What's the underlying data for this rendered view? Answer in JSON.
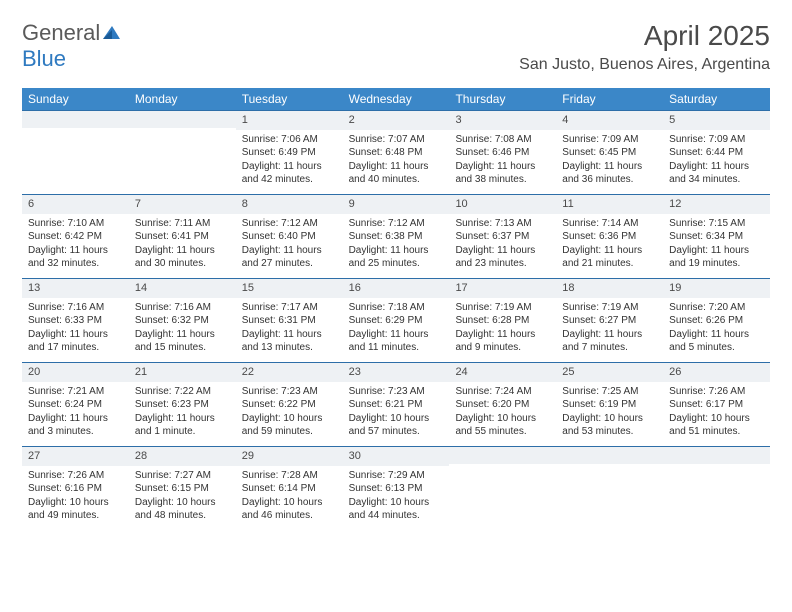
{
  "logo": {
    "part1": "General",
    "part2": "Blue"
  },
  "title": "April 2025",
  "location": "San Justo, Buenos Aires, Argentina",
  "colors": {
    "header_bar": "#3b87c8",
    "day_bar_bg": "#eef1f4",
    "day_bar_border": "#2d6ea8",
    "text": "#3a3a3a",
    "logo_gray": "#5a5a5a",
    "logo_blue": "#2f7ac0"
  },
  "weekdays": [
    "Sunday",
    "Monday",
    "Tuesday",
    "Wednesday",
    "Thursday",
    "Friday",
    "Saturday"
  ],
  "weeks": [
    [
      {
        "n": "",
        "lines": []
      },
      {
        "n": "",
        "lines": []
      },
      {
        "n": "1",
        "lines": [
          "Sunrise: 7:06 AM",
          "Sunset: 6:49 PM",
          "Daylight: 11 hours",
          "and 42 minutes."
        ]
      },
      {
        "n": "2",
        "lines": [
          "Sunrise: 7:07 AM",
          "Sunset: 6:48 PM",
          "Daylight: 11 hours",
          "and 40 minutes."
        ]
      },
      {
        "n": "3",
        "lines": [
          "Sunrise: 7:08 AM",
          "Sunset: 6:46 PM",
          "Daylight: 11 hours",
          "and 38 minutes."
        ]
      },
      {
        "n": "4",
        "lines": [
          "Sunrise: 7:09 AM",
          "Sunset: 6:45 PM",
          "Daylight: 11 hours",
          "and 36 minutes."
        ]
      },
      {
        "n": "5",
        "lines": [
          "Sunrise: 7:09 AM",
          "Sunset: 6:44 PM",
          "Daylight: 11 hours",
          "and 34 minutes."
        ]
      }
    ],
    [
      {
        "n": "6",
        "lines": [
          "Sunrise: 7:10 AM",
          "Sunset: 6:42 PM",
          "Daylight: 11 hours",
          "and 32 minutes."
        ]
      },
      {
        "n": "7",
        "lines": [
          "Sunrise: 7:11 AM",
          "Sunset: 6:41 PM",
          "Daylight: 11 hours",
          "and 30 minutes."
        ]
      },
      {
        "n": "8",
        "lines": [
          "Sunrise: 7:12 AM",
          "Sunset: 6:40 PM",
          "Daylight: 11 hours",
          "and 27 minutes."
        ]
      },
      {
        "n": "9",
        "lines": [
          "Sunrise: 7:12 AM",
          "Sunset: 6:38 PM",
          "Daylight: 11 hours",
          "and 25 minutes."
        ]
      },
      {
        "n": "10",
        "lines": [
          "Sunrise: 7:13 AM",
          "Sunset: 6:37 PM",
          "Daylight: 11 hours",
          "and 23 minutes."
        ]
      },
      {
        "n": "11",
        "lines": [
          "Sunrise: 7:14 AM",
          "Sunset: 6:36 PM",
          "Daylight: 11 hours",
          "and 21 minutes."
        ]
      },
      {
        "n": "12",
        "lines": [
          "Sunrise: 7:15 AM",
          "Sunset: 6:34 PM",
          "Daylight: 11 hours",
          "and 19 minutes."
        ]
      }
    ],
    [
      {
        "n": "13",
        "lines": [
          "Sunrise: 7:16 AM",
          "Sunset: 6:33 PM",
          "Daylight: 11 hours",
          "and 17 minutes."
        ]
      },
      {
        "n": "14",
        "lines": [
          "Sunrise: 7:16 AM",
          "Sunset: 6:32 PM",
          "Daylight: 11 hours",
          "and 15 minutes."
        ]
      },
      {
        "n": "15",
        "lines": [
          "Sunrise: 7:17 AM",
          "Sunset: 6:31 PM",
          "Daylight: 11 hours",
          "and 13 minutes."
        ]
      },
      {
        "n": "16",
        "lines": [
          "Sunrise: 7:18 AM",
          "Sunset: 6:29 PM",
          "Daylight: 11 hours",
          "and 11 minutes."
        ]
      },
      {
        "n": "17",
        "lines": [
          "Sunrise: 7:19 AM",
          "Sunset: 6:28 PM",
          "Daylight: 11 hours",
          "and 9 minutes."
        ]
      },
      {
        "n": "18",
        "lines": [
          "Sunrise: 7:19 AM",
          "Sunset: 6:27 PM",
          "Daylight: 11 hours",
          "and 7 minutes."
        ]
      },
      {
        "n": "19",
        "lines": [
          "Sunrise: 7:20 AM",
          "Sunset: 6:26 PM",
          "Daylight: 11 hours",
          "and 5 minutes."
        ]
      }
    ],
    [
      {
        "n": "20",
        "lines": [
          "Sunrise: 7:21 AM",
          "Sunset: 6:24 PM",
          "Daylight: 11 hours",
          "and 3 minutes."
        ]
      },
      {
        "n": "21",
        "lines": [
          "Sunrise: 7:22 AM",
          "Sunset: 6:23 PM",
          "Daylight: 11 hours",
          "and 1 minute."
        ]
      },
      {
        "n": "22",
        "lines": [
          "Sunrise: 7:23 AM",
          "Sunset: 6:22 PM",
          "Daylight: 10 hours",
          "and 59 minutes."
        ]
      },
      {
        "n": "23",
        "lines": [
          "Sunrise: 7:23 AM",
          "Sunset: 6:21 PM",
          "Daylight: 10 hours",
          "and 57 minutes."
        ]
      },
      {
        "n": "24",
        "lines": [
          "Sunrise: 7:24 AM",
          "Sunset: 6:20 PM",
          "Daylight: 10 hours",
          "and 55 minutes."
        ]
      },
      {
        "n": "25",
        "lines": [
          "Sunrise: 7:25 AM",
          "Sunset: 6:19 PM",
          "Daylight: 10 hours",
          "and 53 minutes."
        ]
      },
      {
        "n": "26",
        "lines": [
          "Sunrise: 7:26 AM",
          "Sunset: 6:17 PM",
          "Daylight: 10 hours",
          "and 51 minutes."
        ]
      }
    ],
    [
      {
        "n": "27",
        "lines": [
          "Sunrise: 7:26 AM",
          "Sunset: 6:16 PM",
          "Daylight: 10 hours",
          "and 49 minutes."
        ]
      },
      {
        "n": "28",
        "lines": [
          "Sunrise: 7:27 AM",
          "Sunset: 6:15 PM",
          "Daylight: 10 hours",
          "and 48 minutes."
        ]
      },
      {
        "n": "29",
        "lines": [
          "Sunrise: 7:28 AM",
          "Sunset: 6:14 PM",
          "Daylight: 10 hours",
          "and 46 minutes."
        ]
      },
      {
        "n": "30",
        "lines": [
          "Sunrise: 7:29 AM",
          "Sunset: 6:13 PM",
          "Daylight: 10 hours",
          "and 44 minutes."
        ]
      },
      {
        "n": "",
        "lines": []
      },
      {
        "n": "",
        "lines": []
      },
      {
        "n": "",
        "lines": []
      }
    ]
  ]
}
